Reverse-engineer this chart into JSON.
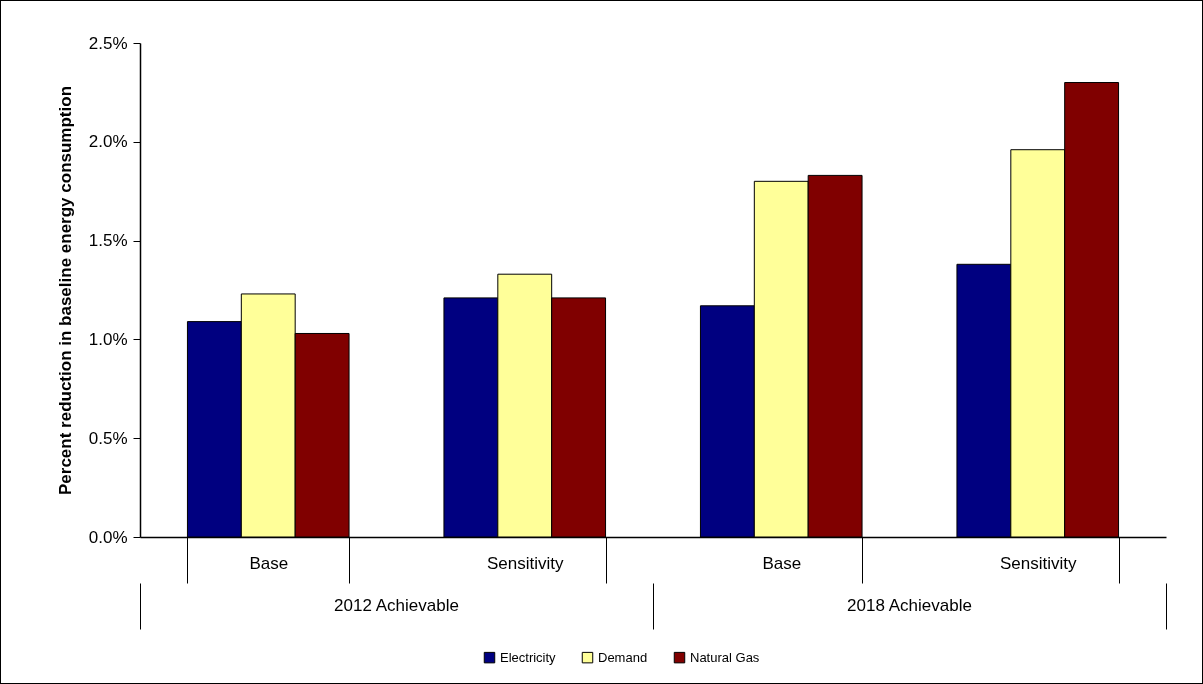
{
  "chart_data": {
    "type": "bar",
    "ylabel": "Percent reduction in baseline energy consumption",
    "categories": [
      "Base",
      "Sensitivity",
      "Base",
      "Sensitivity"
    ],
    "series": [
      {
        "name": "Electricity",
        "color": "#000080",
        "values": [
          1.09,
          1.21,
          1.17,
          1.38
        ]
      },
      {
        "name": "Demand",
        "color": "#ffff99",
        "values": [
          1.23,
          1.33,
          1.8,
          1.96
        ]
      },
      {
        "name": "Natural Gas",
        "color": "#800000",
        "values": [
          1.03,
          1.21,
          1.83,
          2.3
        ]
      }
    ],
    "annotations": [
      "2012 Achievable",
      "2018 Achievable"
    ],
    "ylim": [
      0,
      2.5
    ],
    "yticks": [
      {
        "value": 0,
        "label": "0.0%"
      },
      {
        "value": 0.5,
        "label": "0.5%"
      },
      {
        "value": 1,
        "label": "1.0%"
      },
      {
        "value": 1.5,
        "label": "1.5%"
      },
      {
        "value": 2,
        "label": "2.0%"
      },
      {
        "value": 2.5,
        "label": "2.5%"
      }
    ],
    "grid": false,
    "legend": "bottom"
  }
}
